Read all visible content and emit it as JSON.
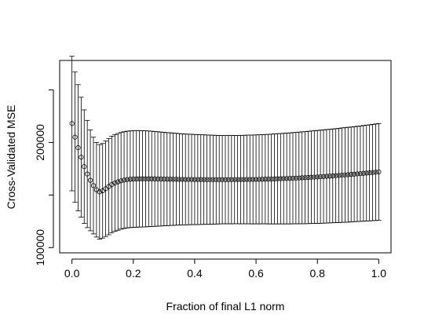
{
  "chart_data": {
    "type": "scatter",
    "xlabel": "Fraction of final L1 norm",
    "ylabel": "Cross-Validated MSE",
    "xlim": [
      -0.04,
      1.04
    ],
    "ylim": [
      95000,
      278000
    ],
    "x_ticks": [
      0.0,
      0.2,
      0.4,
      0.6,
      0.8,
      1.0
    ],
    "x_tick_labels": [
      "0.0",
      "0.2",
      "0.4",
      "0.6",
      "0.8",
      "1.0"
    ],
    "y_ticks": [
      100000,
      150000,
      200000,
      250000
    ],
    "y_tick_labels": [
      "100000",
      "",
      "200000",
      ""
    ],
    "grid": false,
    "marker": "open-circle",
    "series": [
      {
        "x": [
          0.0,
          0.01,
          0.02,
          0.03,
          0.04,
          0.05,
          0.06,
          0.07,
          0.08,
          0.09,
          0.1,
          0.11,
          0.12,
          0.13,
          0.14,
          0.15,
          0.16,
          0.17,
          0.18,
          0.19,
          0.2,
          0.21,
          0.22,
          0.23,
          0.24,
          0.25,
          0.26,
          0.27,
          0.28,
          0.29,
          0.3,
          0.31,
          0.32,
          0.33,
          0.34,
          0.35,
          0.36,
          0.37,
          0.38,
          0.39,
          0.4,
          0.41,
          0.42,
          0.43,
          0.44,
          0.45,
          0.46,
          0.47,
          0.48,
          0.49,
          0.5,
          0.51,
          0.52,
          0.53,
          0.54,
          0.55,
          0.56,
          0.57,
          0.58,
          0.59,
          0.6,
          0.61,
          0.62,
          0.63,
          0.64,
          0.65,
          0.66,
          0.67,
          0.68,
          0.69,
          0.7,
          0.71,
          0.72,
          0.73,
          0.74,
          0.75,
          0.76,
          0.77,
          0.78,
          0.79,
          0.8,
          0.81,
          0.82,
          0.83,
          0.84,
          0.85,
          0.86,
          0.87,
          0.88,
          0.89,
          0.9,
          0.91,
          0.92,
          0.93,
          0.94,
          0.95,
          0.96,
          0.97,
          0.98,
          0.99,
          1.0
        ],
        "y": [
          218000,
          205000,
          195000,
          186000,
          177000,
          170000,
          164000,
          159000,
          155000,
          153000,
          154000,
          156000,
          158000,
          160000,
          161500,
          162500,
          163500,
          164200,
          164700,
          165000,
          165200,
          165300,
          165400,
          165400,
          165400,
          165400,
          165400,
          165300,
          165300,
          165200,
          165200,
          165100,
          165100,
          165000,
          165000,
          164900,
          164900,
          164800,
          164800,
          164800,
          164700,
          164700,
          164700,
          164700,
          164600,
          164600,
          164600,
          164600,
          164600,
          164600,
          164600,
          164600,
          164600,
          164700,
          164700,
          164700,
          164700,
          164800,
          164800,
          164800,
          164900,
          164900,
          165000,
          165100,
          165100,
          165200,
          165300,
          165400,
          165500,
          165600,
          165700,
          165800,
          166000,
          166100,
          166200,
          166400,
          166500,
          166700,
          166900,
          167000,
          167200,
          167400,
          167600,
          167800,
          168000,
          168200,
          168400,
          168600,
          168900,
          169100,
          169300,
          169600,
          169800,
          170100,
          170300,
          170600,
          170900,
          171100,
          171400,
          171700,
          172000
        ],
        "y_err": [
          64000,
          62000,
          60000,
          57000,
          54000,
          51000,
          48000,
          46000,
          45000,
          45000,
          45000,
          45500,
          45800,
          46000,
          46000,
          46000,
          46000,
          46000,
          46000,
          46000,
          46000,
          46000,
          45900,
          45800,
          45700,
          45500,
          45300,
          45100,
          44900,
          44700,
          44500,
          44300,
          44100,
          43900,
          43700,
          43500,
          43300,
          43200,
          43100,
          43000,
          42900,
          42800,
          42700,
          42600,
          42500,
          42400,
          42300,
          42200,
          42100,
          42000,
          42000,
          42000,
          42000,
          42000,
          42000,
          42100,
          42100,
          42200,
          42200,
          42300,
          42300,
          42400,
          42400,
          42500,
          42600,
          42700,
          42800,
          42900,
          43000,
          43100,
          43200,
          43300,
          43400,
          43500,
          43600,
          43700,
          43800,
          43900,
          44000,
          44100,
          44200,
          44300,
          44400,
          44500,
          44500,
          44600,
          44700,
          44800,
          44900,
          45000,
          45100,
          45100,
          45200,
          45300,
          45400,
          45500,
          45600,
          45700,
          45800,
          45900,
          46000
        ]
      }
    ]
  }
}
